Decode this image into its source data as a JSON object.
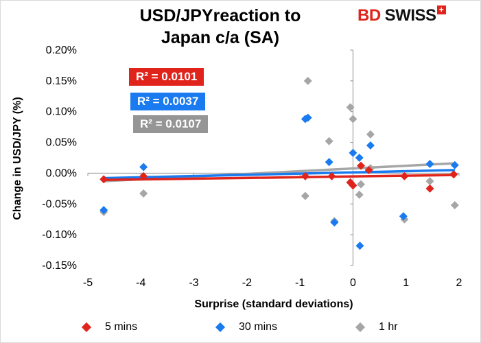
{
  "chart_data": {
    "type": "scatter",
    "title_line1": "USD/JPYreaction to",
    "title_line2": "Japan c/a (SA)",
    "xlabel": "Surprise (standard deviations)",
    "ylabel": "Change in USD/JPY  (%)",
    "xlim": [
      -5,
      2
    ],
    "ylim": [
      -0.0015,
      0.002
    ],
    "x_ticks": [
      -5,
      -4,
      -3,
      -2,
      -1,
      0,
      1,
      2
    ],
    "y_ticks": [
      0.002,
      0.0015,
      0.001,
      0.0005,
      0,
      -0.0005,
      -0.001,
      -0.0015
    ],
    "x_tick_labels": [
      "-5",
      "-4",
      "-3",
      "-2",
      "-1",
      "0",
      "1",
      "2"
    ],
    "y_tick_labels": [
      "0.20%",
      "0.15%",
      "0.10%",
      "0.05%",
      "0.00%",
      "-0.05%",
      "-0.10%",
      "-0.15%"
    ],
    "legend_position": "bottom",
    "series": [
      {
        "name": "5 mins",
        "color": "#e0241b",
        "r_squared": "R² = 0.0101",
        "trend": [
          [
            -4.7,
            -0.00011
          ],
          [
            1.9,
            -3e-05
          ]
        ],
        "points": [
          [
            -4.7,
            -0.0001
          ],
          [
            -3.95,
            -5e-05
          ],
          [
            -0.9,
            -5e-05
          ],
          [
            -0.4,
            -5e-05
          ],
          [
            -0.05,
            -0.00015
          ],
          [
            0.0,
            -0.0002
          ],
          [
            0.15,
            0.00012
          ],
          [
            0.3,
            5e-05
          ],
          [
            0.97,
            -5e-05
          ],
          [
            1.45,
            -0.00025
          ],
          [
            1.9,
            -2e-05
          ]
        ]
      },
      {
        "name": "30 mins",
        "color": "#1a7af0",
        "r_squared": "R² = 0.0037",
        "trend": [
          [
            -4.7,
            -8e-05
          ],
          [
            1.9,
            5e-05
          ]
        ],
        "points": [
          [
            -4.7,
            -0.0006
          ],
          [
            -3.95,
            0.0001
          ],
          [
            -0.9,
            0.00088
          ],
          [
            -0.85,
            0.0009
          ],
          [
            -0.45,
            0.00018
          ],
          [
            -0.35,
            -0.0008
          ],
          [
            -0.05,
            -0.00015
          ],
          [
            0.0,
            0.00033
          ],
          [
            0.12,
            0.00025
          ],
          [
            0.13,
            -0.00118
          ],
          [
            0.33,
            0.00045
          ],
          [
            0.95,
            -0.0007
          ],
          [
            1.45,
            0.00015
          ],
          [
            1.92,
            0.00013
          ]
        ]
      },
      {
        "name": "1 hr",
        "color": "#a6a6a6",
        "r_squared": "R² = 0.0107",
        "trend": [
          [
            -4.7,
            -0.00013
          ],
          [
            1.9,
            0.00016
          ]
        ],
        "points": [
          [
            -4.7,
            -0.00063
          ],
          [
            -3.95,
            -0.00033
          ],
          [
            -0.85,
            0.0015
          ],
          [
            -0.9,
            -0.00037
          ],
          [
            -0.45,
            0.00052
          ],
          [
            -0.35,
            -0.00078
          ],
          [
            -0.05,
            0.00107
          ],
          [
            0.0,
            0.00088
          ],
          [
            0.12,
            -0.00035
          ],
          [
            0.15,
            -0.00018
          ],
          [
            0.33,
            0.00063
          ],
          [
            0.33,
            8e-05
          ],
          [
            0.97,
            -0.00075
          ],
          [
            1.45,
            -0.00013
          ],
          [
            1.92,
            -0.00052
          ]
        ]
      }
    ]
  },
  "logo": {
    "text_bd": "BD",
    "text_swiss": "SWISS",
    "plus": "+"
  }
}
